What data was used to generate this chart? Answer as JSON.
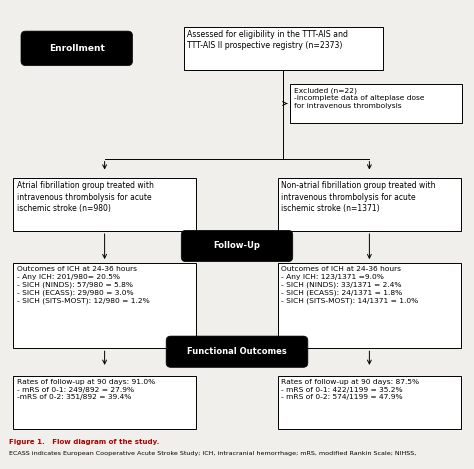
{
  "bg_color": "#f0efeb",
  "box_facecolor": "white",
  "box_edgecolor": "black",
  "black_box_facecolor": "black",
  "black_box_textcolor": "white",
  "text_color": "black",
  "enrollment_label": "Enrollment",
  "followup_label": "Follow-Up",
  "functional_label": "Functional Outcomes",
  "top_box": "Assessed for eligibility in the TTT-AIS and\nTTT-AIS II prospective registry (n=2373)",
  "excluded_box": "Excluded (n=22)\n-incomplete data of alteplase dose\nfor intravenous thrombolysis",
  "left_mid_box": "Atrial fibrillation group treated with\nintravenous thrombolysis for acute\nischemic stroke (n=980)",
  "right_mid_box": "Non-atrial fibrillation group treated with\nintravenous thrombolysis for acute\nischemic stroke (n=1371)",
  "left_ich_box": "Outcomes of ICH at 24-36 hours\n- Any ICH: 201/980= 20.5%\n- SICH (NINDS): 57/980 = 5.8%\n- SICH (ECASS): 29/980 = 3.0%\n- SICH (SITS-MOST): 12/980 = 1.2%",
  "right_ich_box": "Outcomes of ICH at 24-36 hours\n- Any ICH: 123/1371 =9.0%\n- SICH (NINDS): 33/1371 = 2.4%\n- SICH (ECASS): 24/1371 = 1.8%\n- SICH (SITS-MOST): 14/1371 = 1.0%",
  "left_func_box": "Rates of follow-up at 90 days: 91.0%\n- mRS of 0-1: 249/892 = 27.9%\n-mRS of 0-2: 351/892 = 39.4%",
  "right_func_box": "Rates of follow-up at 90 days: 87.5%\n- mRS of 0-1: 422/1199 = 35.2%\n- mRS of 0-2: 574/1199 = 47.9%",
  "caption_bold": "Figure 1.   Flow diagram of the study.",
  "caption_normal": "ECASS indicates European Cooperative Acute Stroke Study; ICH, intracranial hemorrhage; mRS, modified Rankin Scale; NIHSS,"
}
